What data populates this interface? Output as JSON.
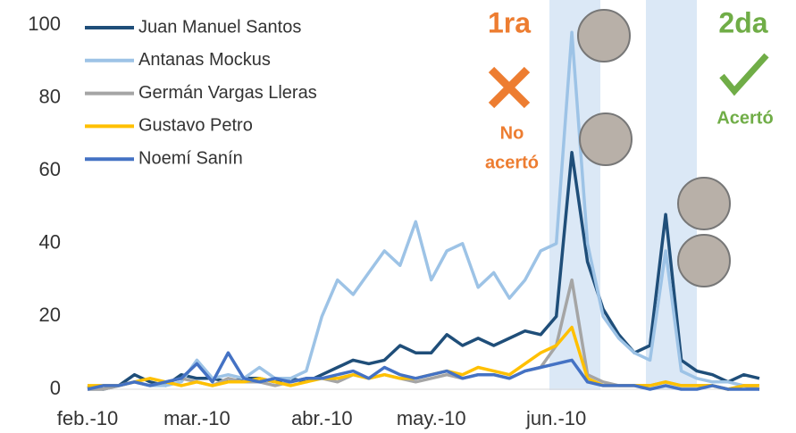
{
  "chart_data": {
    "type": "line",
    "categories": [
      "feb.-10",
      null,
      null,
      null,
      null,
      null,
      null,
      "mar.-10",
      null,
      null,
      null,
      null,
      null,
      null,
      null,
      "abr.-10",
      null,
      null,
      null,
      null,
      null,
      null,
      "may.-10",
      null,
      null,
      null,
      null,
      null,
      null,
      null,
      "jun.-10",
      null,
      null,
      null,
      null,
      null,
      null,
      null,
      null,
      null,
      null,
      null,
      null,
      null
    ],
    "series": [
      {
        "name": "Juan Manuel Santos",
        "color": "#1f4e79",
        "values": [
          1,
          0,
          1,
          4,
          2,
          1,
          4,
          3,
          3,
          2,
          3,
          3,
          2,
          3,
          2,
          4,
          6,
          8,
          7,
          8,
          12,
          10,
          10,
          15,
          12,
          14,
          12,
          14,
          16,
          15,
          20,
          65,
          35,
          22,
          15,
          10,
          12,
          48,
          8,
          5,
          4,
          2,
          4,
          3
        ]
      },
      {
        "name": "Antanas Mockus",
        "color": "#9dc3e6",
        "values": [
          0,
          0,
          1,
          2,
          1,
          1,
          2,
          8,
          3,
          4,
          3,
          6,
          3,
          3,
          5,
          20,
          30,
          26,
          32,
          38,
          34,
          46,
          30,
          38,
          40,
          28,
          32,
          25,
          30,
          38,
          40,
          98,
          40,
          20,
          14,
          10,
          8,
          38,
          5,
          3,
          2,
          2,
          1,
          1
        ]
      },
      {
        "name": "Germán Vargas Lleras",
        "color": "#a5a5a5",
        "values": [
          0,
          0,
          1,
          2,
          1,
          2,
          3,
          2,
          1,
          3,
          2,
          2,
          1,
          2,
          3,
          3,
          2,
          4,
          3,
          4,
          3,
          2,
          3,
          4,
          3,
          4,
          4,
          3,
          5,
          6,
          12,
          30,
          4,
          2,
          1,
          1,
          1,
          2,
          1,
          1,
          1,
          0,
          1,
          0
        ]
      },
      {
        "name": "Gustavo Petro",
        "color": "#ffc000",
        "values": [
          1,
          1,
          1,
          2,
          3,
          2,
          1,
          2,
          1,
          2,
          2,
          3,
          2,
          1,
          2,
          3,
          3,
          4,
          3,
          4,
          3,
          3,
          4,
          5,
          4,
          6,
          5,
          4,
          7,
          10,
          12,
          17,
          3,
          1,
          1,
          1,
          1,
          2,
          1,
          1,
          1,
          0,
          1,
          1
        ]
      },
      {
        "name": "Noemí Sanín",
        "color": "#4472c4",
        "values": [
          0,
          1,
          1,
          2,
          1,
          2,
          3,
          7,
          2,
          10,
          3,
          2,
          3,
          2,
          3,
          3,
          4,
          5,
          3,
          6,
          4,
          3,
          4,
          5,
          3,
          4,
          4,
          3,
          5,
          6,
          7,
          8,
          2,
          1,
          1,
          1,
          0,
          1,
          0,
          0,
          1,
          0,
          0,
          0
        ]
      }
    ],
    "ylim": [
      0,
      100
    ],
    "yticks": [
      0,
      20,
      40,
      60,
      80,
      100
    ],
    "grid": false,
    "annotations": [
      "1ra",
      "No",
      "acertó",
      "2da",
      "Acertó"
    ]
  }
}
